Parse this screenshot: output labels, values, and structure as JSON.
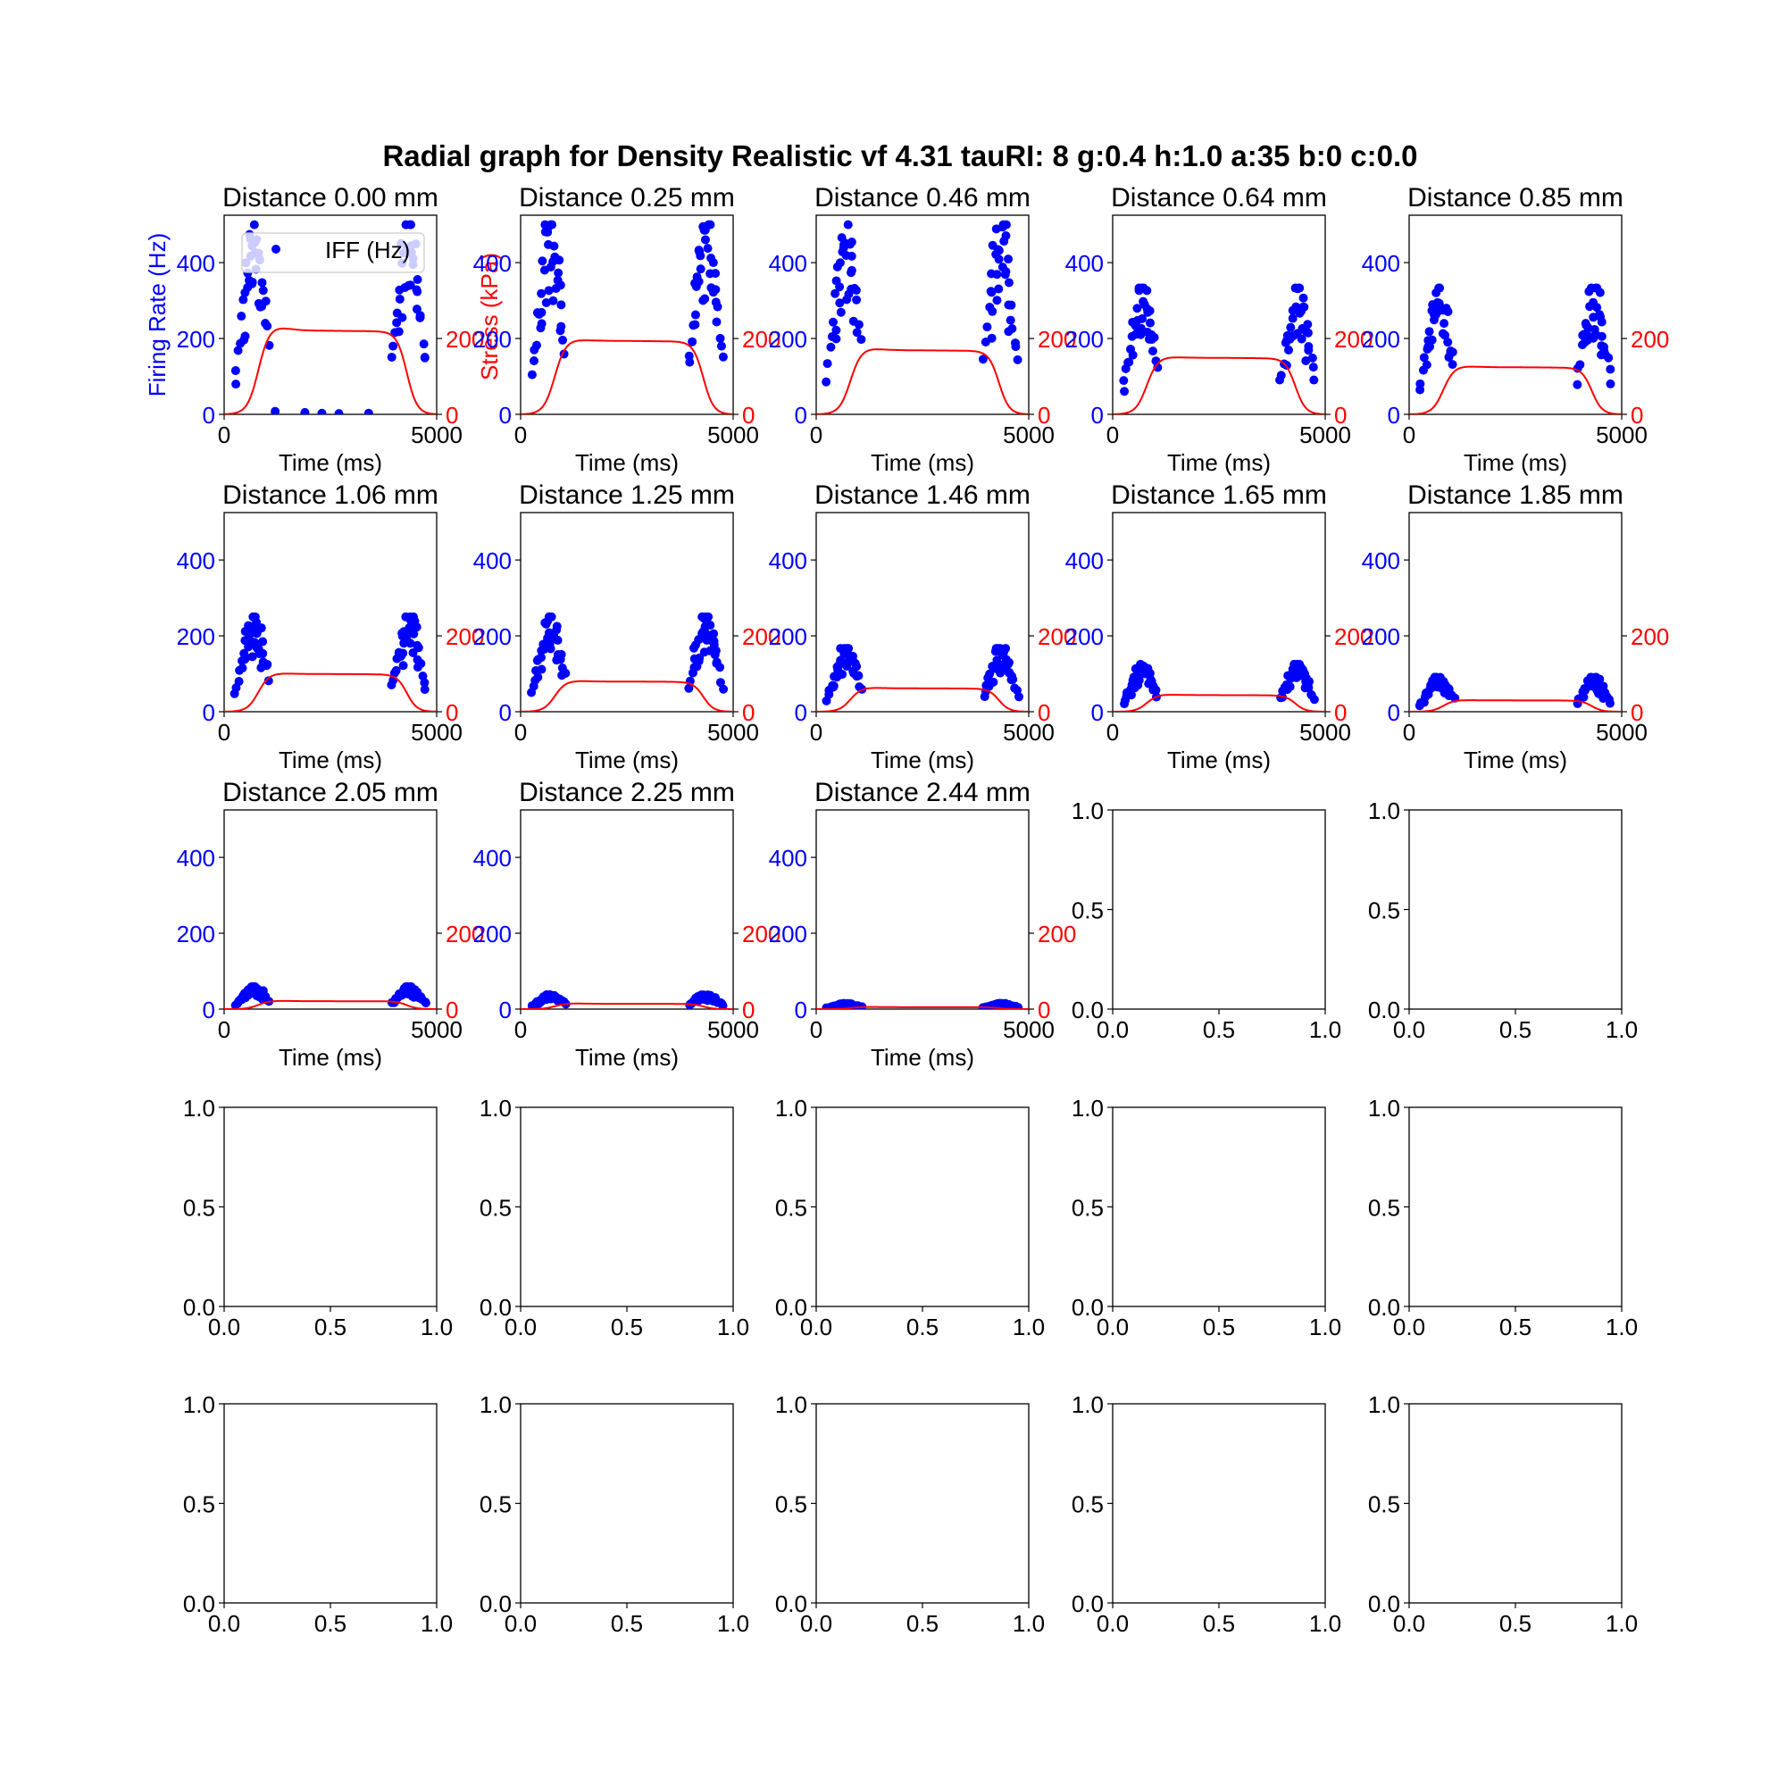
{
  "figure": {
    "title": "Radial graph for Density Realistic vf 4.31 tauRI: 8 g:0.4 h:1.0 a:35 b:0 c:0.0"
  },
  "colors": {
    "ifr_dots": "#0000ff",
    "stress_line": "#ff0000",
    "axis": "#000000"
  },
  "labels": {
    "x_axis": "Time (ms)",
    "y_left": "Firing Rate (Hz)",
    "y_right": "Stress (kPa)",
    "legend_ifr": "IFF (Hz)"
  },
  "axes": {
    "x_ticks": [
      "0",
      "5000"
    ],
    "x_range": [
      0,
      5000
    ],
    "ifr_ticks": [
      "0",
      "200",
      "400"
    ],
    "ifr_range": [
      0,
      525
    ],
    "stress_ticks": [
      "0",
      "200"
    ],
    "stress_range": [
      0,
      525
    ],
    "empty_ticks": [
      "0.0",
      "0.5",
      "1.0"
    ]
  },
  "chart_data": {
    "type": "scatter",
    "grid": false,
    "legend": "top-right of first subplot",
    "layout": "5x5 subplot grid; 13 populated, 12 empty",
    "panels": [
      {
        "title": "Distance 0.00 mm",
        "ifr_peak": 500,
        "stress_plateau": 222,
        "stress_top": 232
      },
      {
        "title": "Distance 0.25 mm",
        "ifr_peak": 500,
        "stress_plateau": 195,
        "stress_top": 198
      },
      {
        "title": "Distance 0.46 mm",
        "ifr_peak": 500,
        "stress_plateau": 170,
        "stress_top": 175
      },
      {
        "title": "Distance 0.64 mm",
        "ifr_peak": 333,
        "stress_plateau": 150,
        "stress_top": 152
      },
      {
        "title": "Distance 0.85 mm",
        "ifr_peak": 333,
        "stress_plateau": 125,
        "stress_top": 128
      },
      {
        "title": "Distance 1.06 mm",
        "ifr_peak": 250,
        "stress_plateau": 100,
        "stress_top": 102
      },
      {
        "title": "Distance 1.25 mm",
        "ifr_peak": 250,
        "stress_plateau": 80,
        "stress_top": 82
      },
      {
        "title": "Distance 1.46 mm",
        "ifr_peak": 167,
        "stress_plateau": 62,
        "stress_top": 64
      },
      {
        "title": "Distance 1.65 mm",
        "ifr_peak": 125,
        "stress_plateau": 44,
        "stress_top": 46
      },
      {
        "title": "Distance 1.85 mm",
        "ifr_peak": 91,
        "stress_plateau": 30,
        "stress_top": 31
      },
      {
        "title": "Distance 2.05 mm",
        "ifr_peak": 59,
        "stress_plateau": 21,
        "stress_top": 22
      },
      {
        "title": "Distance 2.25 mm",
        "ifr_peak": 38,
        "stress_plateau": 14,
        "stress_top": 15
      },
      {
        "title": "Distance 2.44 mm",
        "ifr_peak": 15,
        "stress_plateau": 5,
        "stress_top": 6
      }
    ]
  }
}
